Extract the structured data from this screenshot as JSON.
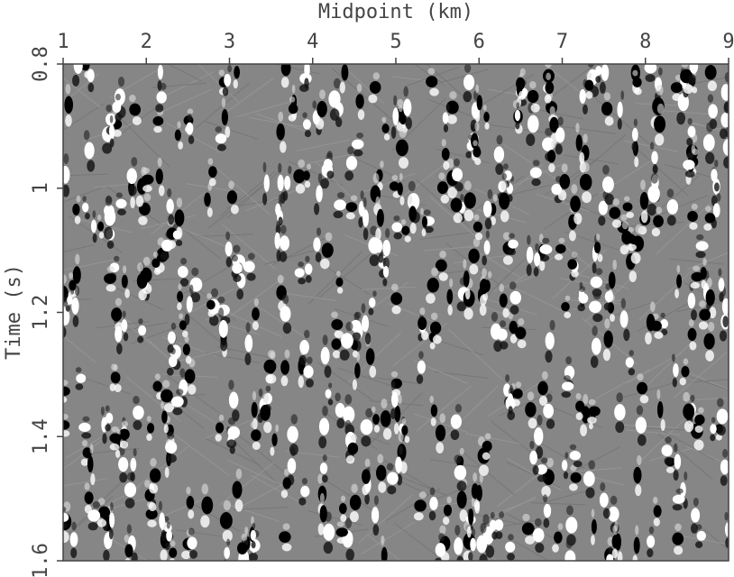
{
  "chart_data": {
    "type": "image",
    "xlabel": "Midpoint (km)",
    "ylabel": "Time (s)",
    "xlim": [
      1,
      9
    ],
    "xticks": [
      1,
      2,
      3,
      4,
      5,
      6,
      7,
      8,
      9
    ],
    "x_axis_position": "top",
    "ylim": [
      0.8,
      1.6
    ],
    "yticks": [
      0.8,
      1,
      1.2,
      1.4,
      1.6
    ],
    "y_increases_downward": true
  }
}
